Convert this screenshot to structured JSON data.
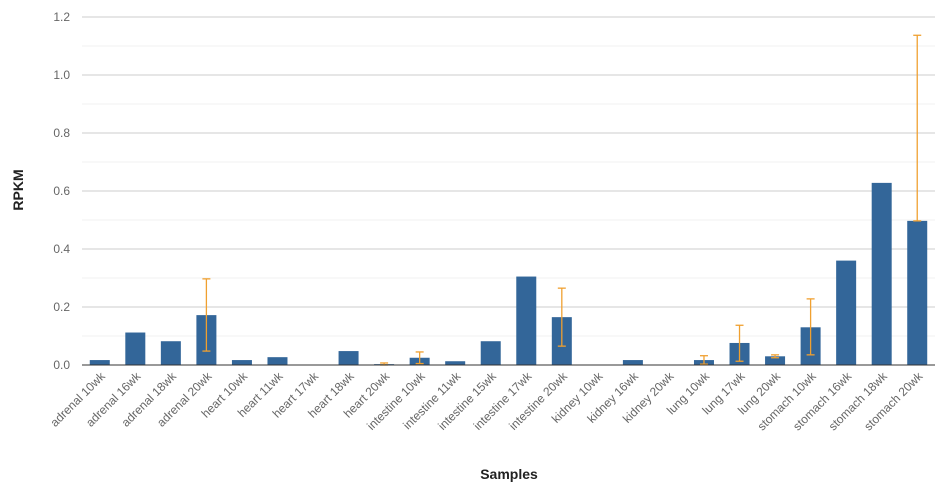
{
  "chart_data": {
    "type": "bar",
    "xlabel": "Samples",
    "ylabel": "RPKM",
    "ylim": [
      0,
      1.2
    ],
    "y_ticks": [
      "0.0",
      "0.2",
      "0.4",
      "0.6",
      "0.8",
      "1.0",
      "1.2"
    ],
    "grid": true,
    "bar_color": "#336699",
    "error_color": "#f0a030",
    "categories": [
      "adrenal 10wk",
      "adrenal 16wk",
      "adrenal 18wk",
      "adrenal 20wk",
      "heart 10wk",
      "heart 11wk",
      "heart 17wk",
      "heart 18wk",
      "heart 20wk",
      "intestine 10wk",
      "intestine 11wk",
      "intestine 15wk",
      "intestine 17wk",
      "intestine 20wk",
      "kidney 10wk",
      "kidney 16wk",
      "kidney 20wk",
      "lung 10wk",
      "lung 17wk",
      "lung 20wk",
      "stomach 10wk",
      "stomach 16wk",
      "stomach 18wk",
      "stomach 20wk"
    ],
    "values": [
      0.017,
      0.112,
      0.082,
      0.172,
      0.017,
      0.027,
      0.0,
      0.048,
      0.003,
      0.025,
      0.013,
      0.082,
      0.305,
      0.165,
      0.0,
      0.017,
      0.0,
      0.017,
      0.076,
      0.03,
      0.13,
      0.36,
      0.628,
      0.497
    ],
    "error_low": [
      null,
      null,
      null,
      0.048,
      null,
      null,
      null,
      null,
      0.0,
      0.005,
      null,
      null,
      null,
      0.065,
      null,
      null,
      null,
      0.003,
      0.013,
      0.025,
      0.035,
      null,
      null,
      0.497
    ],
    "error_high": [
      null,
      null,
      null,
      0.297,
      null,
      null,
      null,
      null,
      0.007,
      0.045,
      null,
      null,
      null,
      0.265,
      null,
      null,
      null,
      0.032,
      0.137,
      0.035,
      0.228,
      null,
      null,
      1.137
    ]
  }
}
